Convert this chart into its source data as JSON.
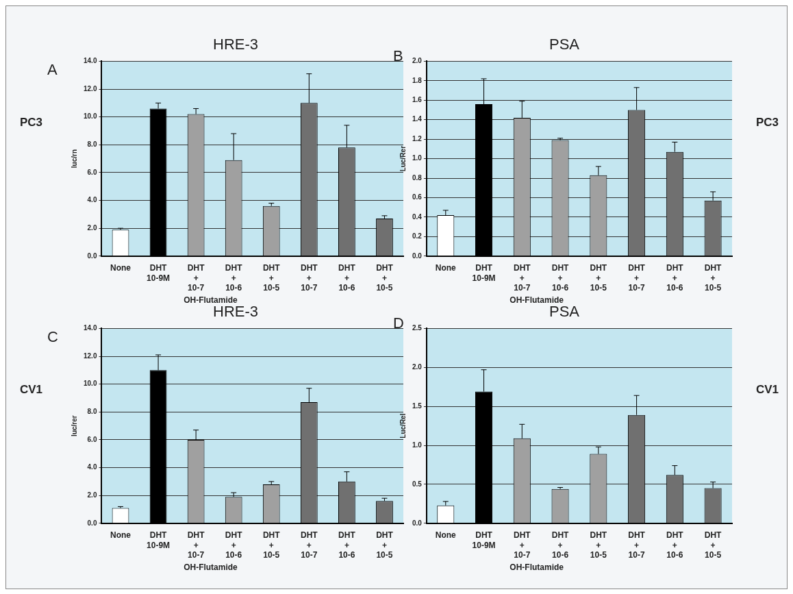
{
  "chart_data": [
    {
      "type": "bar",
      "title": "HRE-3",
      "ylabel": "luc/rn",
      "categories": [
        "None",
        "DHT\n10-9M",
        "DHT\n+\n10-7",
        "DHT\n+\n10-6",
        "DHT\n+\n10-5",
        "DHT\n+\n10-7",
        "DHT\n+\n10-6",
        "DHT\n+\n10-5"
      ],
      "values": [
        1.9,
        10.6,
        10.2,
        6.9,
        3.6,
        11.0,
        7.8,
        2.7
      ],
      "errors": [
        [
          1.9,
          2.0
        ],
        [
          10.6,
          11.0
        ],
        [
          10.2,
          10.6
        ],
        [
          6.9,
          8.8
        ],
        [
          3.6,
          3.8
        ],
        [
          11.0,
          13.1
        ],
        [
          7.8,
          9.4
        ],
        [
          2.7,
          2.9
        ]
      ],
      "colors": [
        "#ffffff",
        "#000000",
        "#a0a0a0",
        "#a0a0a0",
        "#a0a0a0",
        "#707070",
        "#707070",
        "#707070"
      ],
      "ylim": [
        0,
        14
      ],
      "yticks": [
        {
          "value": 0,
          "label": "0.0"
        },
        {
          "value": 2,
          "label": "2.0"
        },
        {
          "value": 4,
          "label": "4.0"
        },
        {
          "value": 6,
          "label": "6.0"
        },
        {
          "value": 8,
          "label": "8.0"
        },
        {
          "value": 10,
          "label": "10.0"
        },
        {
          "value": 12,
          "label": "12.0"
        },
        {
          "value": 14,
          "label": "14.0"
        }
      ],
      "grid": "y",
      "annotations": [
        "A",
        "PC3",
        "OH-Flutamide"
      ]
    },
    {
      "type": "bar",
      "title": "PSA",
      "ylabel": "Luc/Rer",
      "categories": [
        "None",
        "DHT\n10-9M",
        "DHT\n+\n10-7",
        "DHT\n+\n10-6",
        "DHT\n+\n10-5",
        "DHT\n+\n10-7",
        "DHT\n+\n10-6",
        "DHT\n+\n10-5"
      ],
      "values": [
        0.42,
        1.56,
        1.42,
        1.19,
        0.83,
        1.5,
        1.07,
        0.57
      ],
      "errors": [
        [
          0.42,
          0.47
        ],
        [
          1.56,
          1.82
        ],
        [
          1.42,
          1.59
        ],
        [
          1.19,
          1.21
        ],
        [
          0.83,
          0.92
        ],
        [
          1.5,
          1.73
        ],
        [
          1.07,
          1.17
        ],
        [
          0.57,
          0.66
        ]
      ],
      "colors": [
        "#ffffff",
        "#000000",
        "#a0a0a0",
        "#a0a0a0",
        "#a0a0a0",
        "#707070",
        "#707070",
        "#707070"
      ],
      "ylim": [
        0,
        2
      ],
      "yticks": [
        {
          "value": 0,
          "label": "0.0"
        },
        {
          "value": 0.2,
          "label": "0.2"
        },
        {
          "value": 0.4,
          "label": "0.4"
        },
        {
          "value": 0.6,
          "label": "0.6"
        },
        {
          "value": 0.8,
          "label": "0.8"
        },
        {
          "value": 1,
          "label": "1.0"
        },
        {
          "value": 1.2,
          "label": "1.2"
        },
        {
          "value": 1.4,
          "label": "1.4"
        },
        {
          "value": 1.6,
          "label": "1.6"
        },
        {
          "value": 1.8,
          "label": "1.8"
        },
        {
          "value": 2,
          "label": "2.0"
        }
      ],
      "grid": "y",
      "annotations": [
        "B",
        "PC3",
        "OH-Flutamide"
      ]
    },
    {
      "type": "bar",
      "title": "HRE-3",
      "ylabel": "luc/rer",
      "categories": [
        "None",
        "DHT\n10-9M",
        "DHT\n+\n10-7",
        "DHT\n+\n10-6",
        "DHT\n+\n10-5",
        "DHT\n+\n10-7",
        "DHT\n+\n10-6",
        "DHT\n+\n10-5"
      ],
      "values": [
        1.1,
        11.0,
        6.0,
        1.9,
        2.8,
        8.7,
        3.0,
        1.6
      ],
      "errors": [
        [
          1.1,
          1.2
        ],
        [
          11.0,
          12.1
        ],
        [
          6.0,
          6.7
        ],
        [
          1.9,
          2.2
        ],
        [
          2.8,
          3.0
        ],
        [
          8.7,
          9.7
        ],
        [
          3.0,
          3.7
        ],
        [
          1.6,
          1.8
        ]
      ],
      "colors": [
        "#ffffff",
        "#000000",
        "#a0a0a0",
        "#a0a0a0",
        "#a0a0a0",
        "#707070",
        "#707070",
        "#707070"
      ],
      "ylim": [
        0,
        14
      ],
      "yticks": [
        {
          "value": 0,
          "label": "0.0"
        },
        {
          "value": 2,
          "label": "2.0"
        },
        {
          "value": 4,
          "label": "4.0"
        },
        {
          "value": 6,
          "label": "6.0"
        },
        {
          "value": 8,
          "label": "8.0"
        },
        {
          "value": 10,
          "label": "10.0"
        },
        {
          "value": 12,
          "label": "12.0"
        },
        {
          "value": 14,
          "label": "14.0"
        }
      ],
      "grid": "y",
      "annotations": [
        "C",
        "CV1",
        "OH-Flutamide"
      ]
    },
    {
      "type": "bar",
      "title": "PSA",
      "ylabel": "Luc/Rel",
      "categories": [
        "None",
        "DHT\n10-9M",
        "DHT\n+\n10-7",
        "DHT\n+\n10-6",
        "DHT\n+\n10-5",
        "DHT\n+\n10-7",
        "DHT\n+\n10-6",
        "DHT\n+\n10-5"
      ],
      "values": [
        0.23,
        1.69,
        1.09,
        0.44,
        0.89,
        1.39,
        0.62,
        0.45
      ],
      "errors": [
        [
          0.23,
          0.28
        ],
        [
          1.69,
          1.97
        ],
        [
          1.09,
          1.27
        ],
        [
          0.44,
          0.46
        ],
        [
          0.89,
          0.98
        ],
        [
          1.39,
          1.64
        ],
        [
          0.62,
          0.74
        ],
        [
          0.45,
          0.53
        ]
      ],
      "colors": [
        "#ffffff",
        "#000000",
        "#a0a0a0",
        "#a0a0a0",
        "#a0a0a0",
        "#707070",
        "#707070",
        "#707070"
      ],
      "ylim": [
        0,
        2.5
      ],
      "yticks": [
        {
          "value": 0,
          "label": "0.0"
        },
        {
          "value": 0.5,
          "label": "0.5"
        },
        {
          "value": 1,
          "label": "1.0"
        },
        {
          "value": 1.5,
          "label": "1.5"
        },
        {
          "value": 2,
          "label": "2.0"
        },
        {
          "value": 2.5,
          "label": "2.5"
        }
      ],
      "grid": "y",
      "annotations": [
        "D",
        "CV1",
        "OH-Flutamide"
      ]
    }
  ]
}
